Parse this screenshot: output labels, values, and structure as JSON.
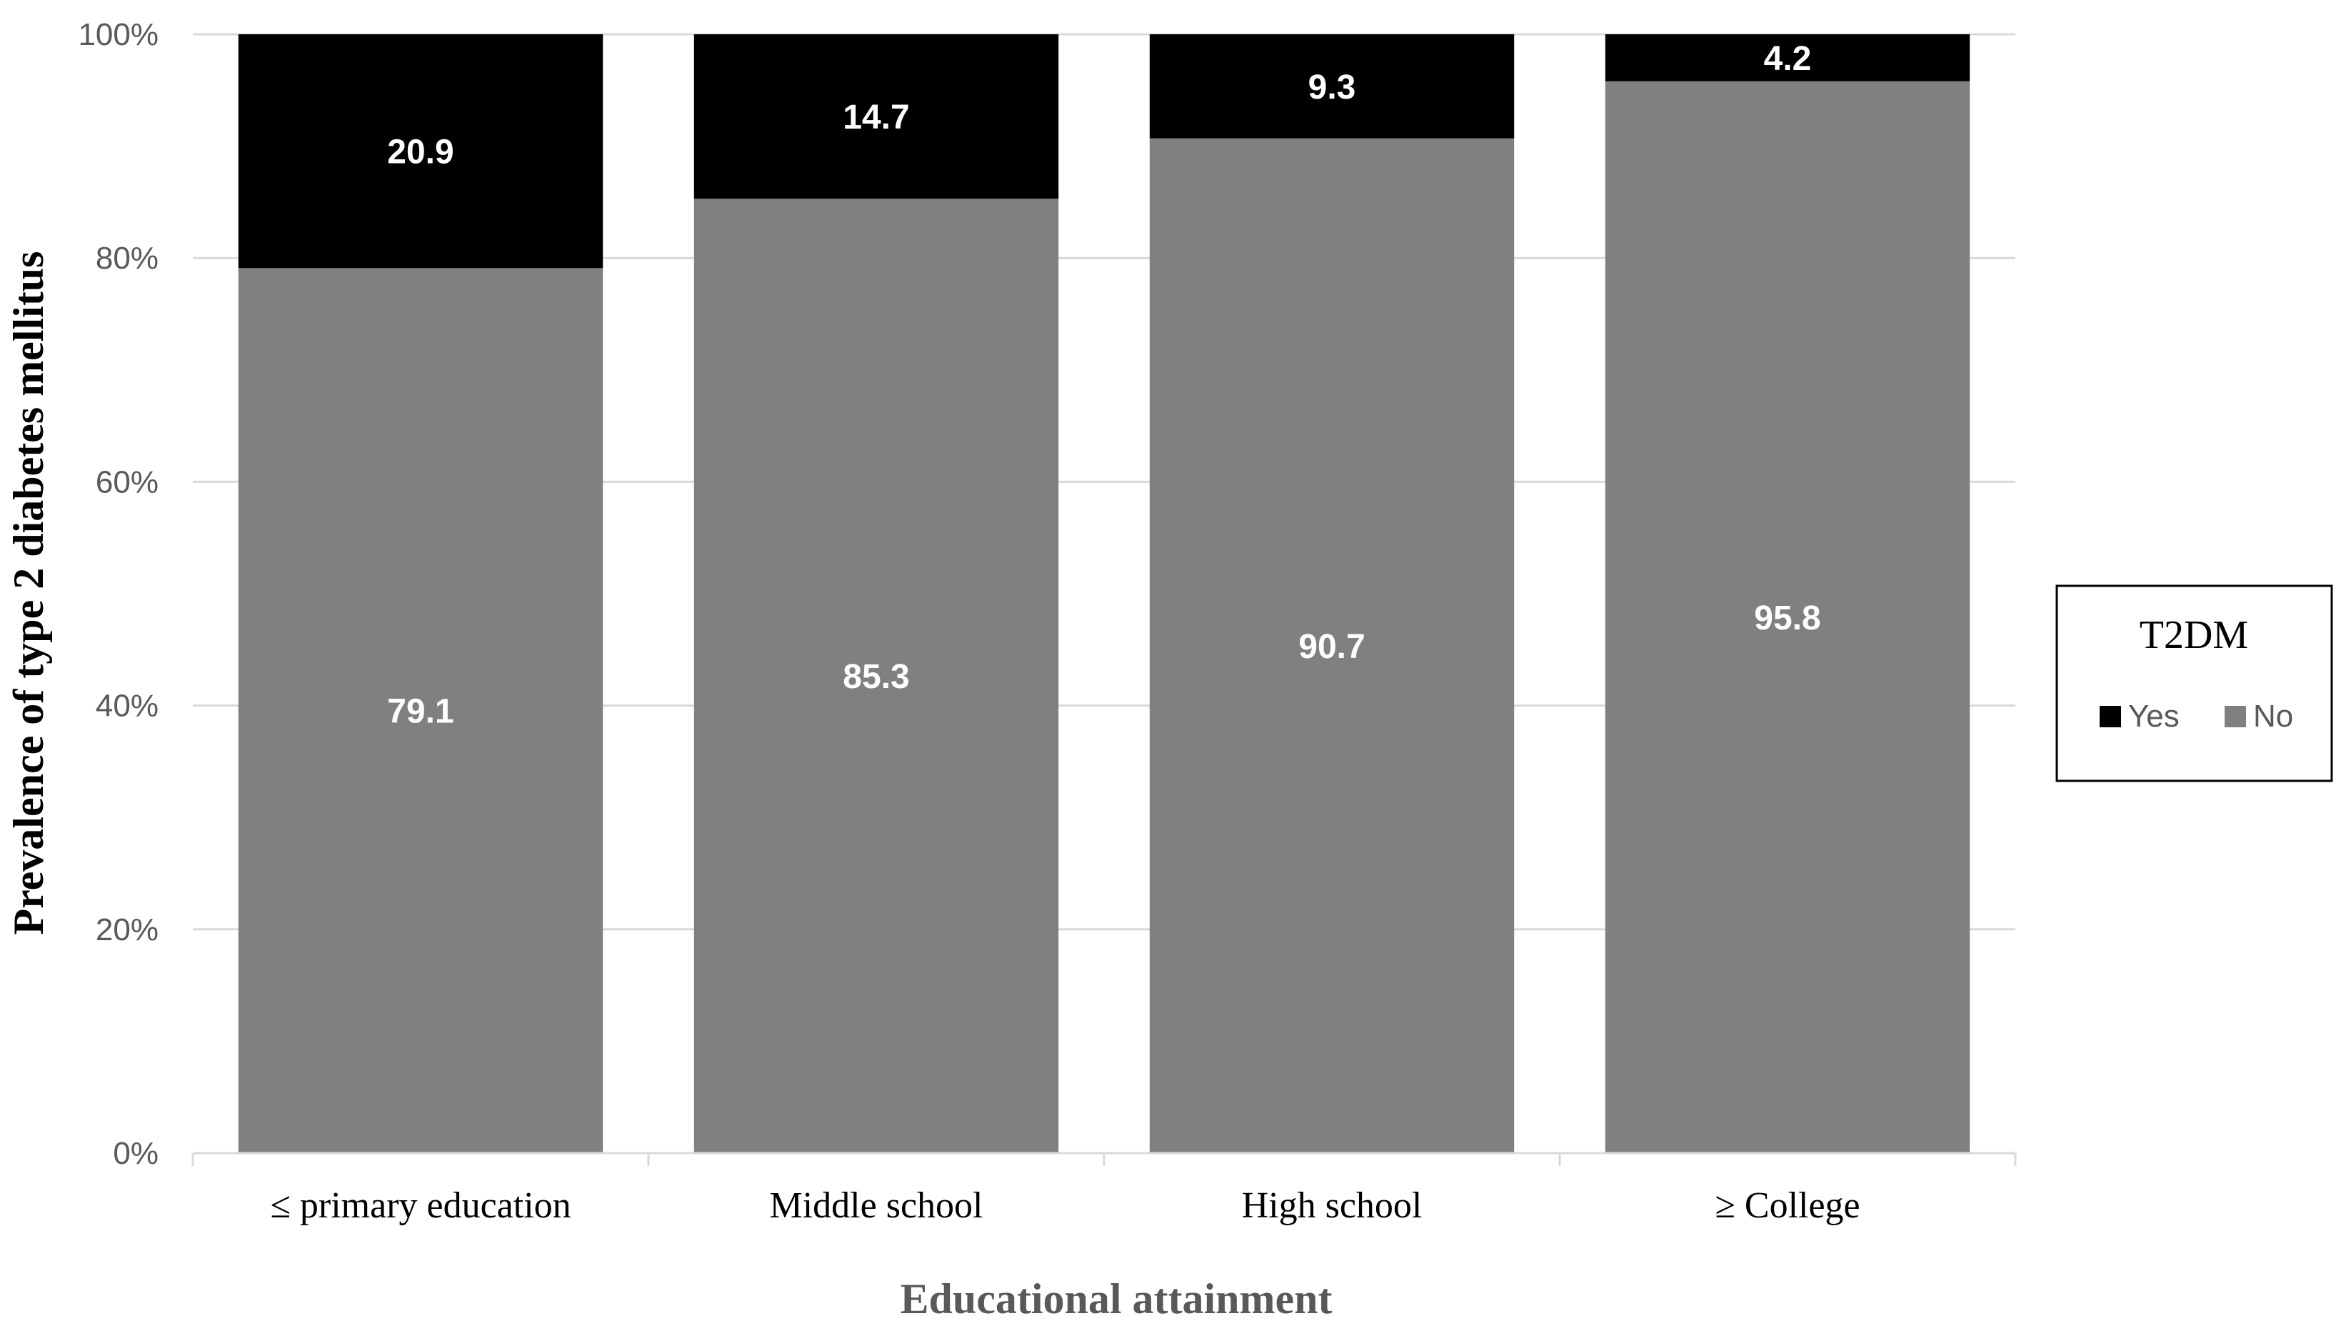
{
  "chart_data": {
    "type": "bar",
    "stacked": true,
    "categories": [
      "≤ primary education",
      "Middle school",
      "High school",
      "≥ College"
    ],
    "series": [
      {
        "name": "No",
        "values": [
          79.1,
          85.3,
          90.7,
          95.8
        ],
        "color": "#808080"
      },
      {
        "name": "Yes",
        "values": [
          20.9,
          14.7,
          9.3,
          4.2
        ],
        "color": "#000000"
      }
    ],
    "title": "",
    "xlabel": "Educational attainment",
    "ylabel": "Prevalence of type 2 diabetes mellitus",
    "ylim": [
      0,
      100
    ],
    "yticks": [
      "0%",
      "20%",
      "40%",
      "60%",
      "80%",
      "100%"
    ],
    "grid": true,
    "legend": {
      "title": "T2DM",
      "entries": [
        {
          "label": "Yes",
          "color": "#000000"
        },
        {
          "label": "No",
          "color": "#808080"
        }
      ],
      "placement": "right"
    }
  }
}
